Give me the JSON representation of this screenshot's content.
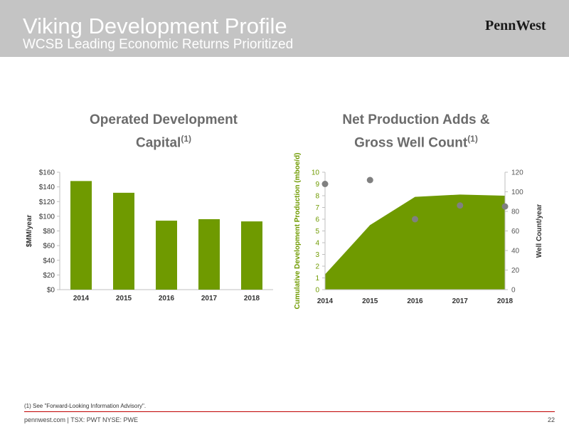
{
  "header": {
    "title": "Viking Development Profile",
    "subtitle": "WCSB Leading Economic Returns Prioritized",
    "logo_text": "PennWest"
  },
  "colors": {
    "header_bg": "#c4c4c4",
    "accent_green": "#6f9a00",
    "dot_gray": "#808080",
    "footer_rule": "#c00000"
  },
  "left_chart": {
    "title_line1": "Operated Development",
    "title_line2": "Capital",
    "title_sup": "(1)"
  },
  "right_chart": {
    "title_line1": "Net Production Adds &",
    "title_line2": "Gross Well Count",
    "title_sup": "(1)"
  },
  "chart_data": [
    {
      "type": "bar",
      "categories": [
        "2014",
        "2015",
        "2016",
        "2017",
        "2018"
      ],
      "values": [
        148,
        132,
        94,
        96,
        93
      ],
      "ylabel": "$MM/year",
      "ylim": [
        0,
        160
      ],
      "yticks": [
        "$0",
        "$20",
        "$40",
        "$60",
        "$80",
        "$100",
        "$120",
        "$140",
        "$160"
      ],
      "color": "#6f9a00",
      "grid": false
    },
    {
      "type": "area",
      "categories": [
        "2014",
        "2015",
        "2016",
        "2017",
        "2018"
      ],
      "area_values": [
        1.3,
        5.5,
        7.9,
        8.1,
        8.0
      ],
      "scatter_values": [
        108,
        112,
        72,
        86,
        85
      ],
      "ylabel_left": "Cumulative Development Production (mboe/d)",
      "ylabel_right": "Well Count/year",
      "ylim_left": [
        0,
        10
      ],
      "ylim_right": [
        0,
        120
      ],
      "yticks_left": [
        "0",
        "1",
        "2",
        "3",
        "4",
        "5",
        "6",
        "7",
        "8",
        "9",
        "10"
      ],
      "yticks_right": [
        "0",
        "20",
        "40",
        "60",
        "80",
        "100",
        "120"
      ],
      "area_color": "#6f9a00",
      "dot_color": "#808080",
      "grid": false
    }
  ],
  "footer": {
    "footnote": "(1) See \"Forward-Looking Information Advisory\".",
    "site_text": "pennwest.com | TSX: PWT  NYSE: PWE",
    "page_number": "22"
  }
}
